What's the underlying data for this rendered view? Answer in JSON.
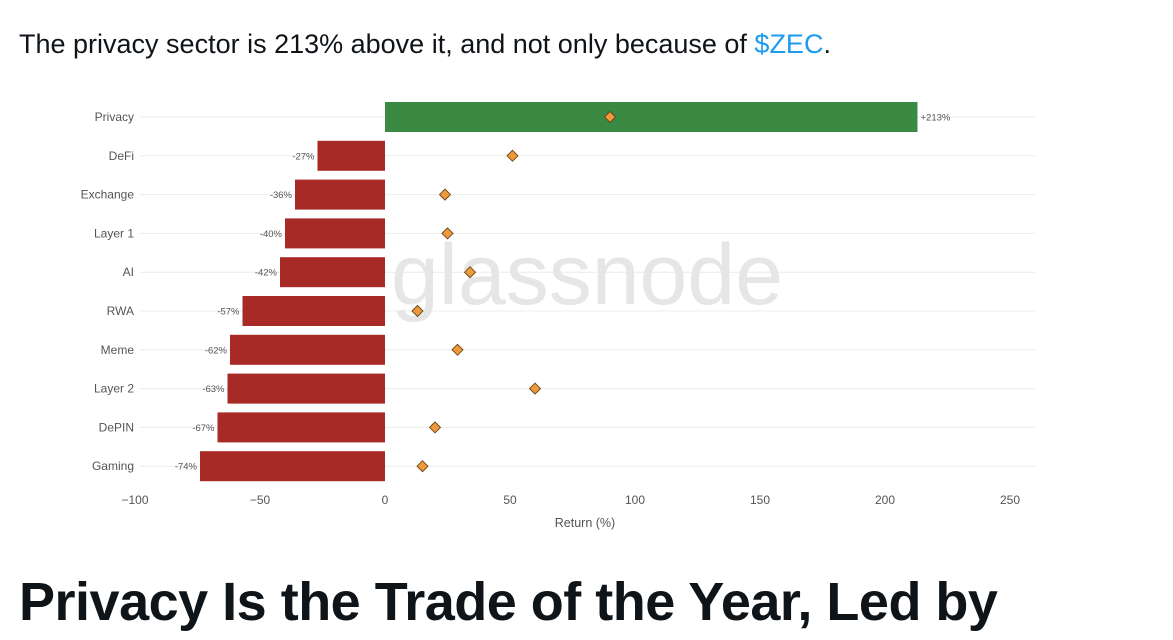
{
  "tweet": {
    "text_before": "The privacy sector is 213% above it, and not only because of ",
    "cashtag": "$ZEC",
    "text_after": "."
  },
  "chart_data": {
    "type": "bar",
    "orientation": "horizontal",
    "watermark": "glassnode",
    "categories": [
      "Privacy",
      "DeFi",
      "Exchange",
      "Layer 1",
      "AI",
      "RWA",
      "Meme",
      "Layer 2",
      "DePIN",
      "Gaming"
    ],
    "values": [
      213,
      -27,
      -36,
      -40,
      -42,
      -57,
      -62,
      -63,
      -67,
      -74
    ],
    "value_labels": [
      "+213%",
      "-27%",
      "-36%",
      "-40%",
      "-42%",
      "-57%",
      "-62%",
      "-63%",
      "-67%",
      "-74%"
    ],
    "markers": [
      90,
      51,
      24,
      25,
      34,
      13,
      29,
      60,
      20,
      15
    ],
    "xlabel": "Return (%)",
    "xlim": [
      -100,
      250
    ],
    "xticks": [
      -100,
      -50,
      0,
      50,
      100,
      150,
      200,
      250
    ],
    "xtick_labels": [
      "−100",
      "−50",
      "0",
      "50",
      "100",
      "150",
      "200",
      "250"
    ],
    "grid": true,
    "colors": {
      "positive": "#3a8a43",
      "negative": "#a82a26",
      "marker_fill": "#ed9a3d",
      "marker_stroke": "#6b4213",
      "grid": "#ececec",
      "watermark": "#e6e6e6"
    }
  },
  "article": {
    "headline": "Privacy Is the Trade of the Year, Led by"
  }
}
